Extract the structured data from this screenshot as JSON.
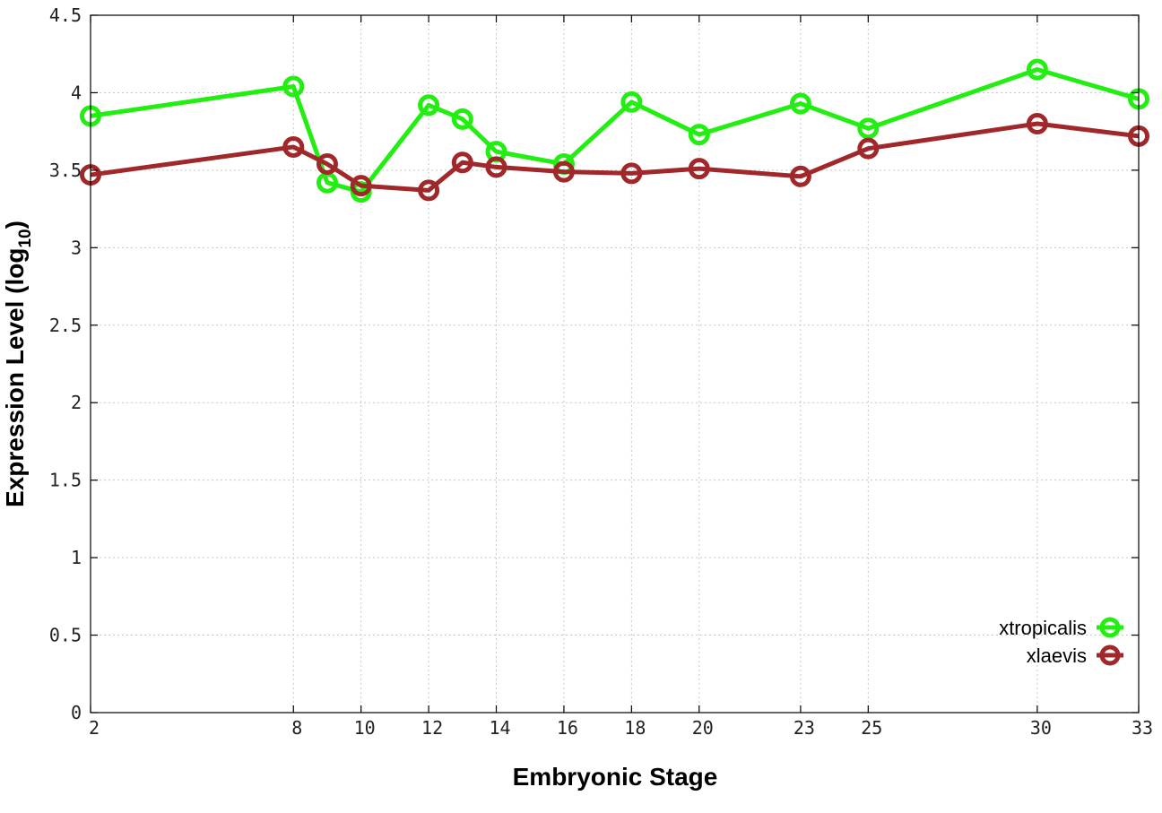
{
  "chart_data": {
    "type": "line",
    "xlabel": "Embryonic Stage",
    "ylabel_main": "Expression Level (log",
    "ylabel_sub": "10",
    "ylabel_close": ")",
    "xlim": [
      2,
      33
    ],
    "ylim": [
      0,
      4.5
    ],
    "x_ticks": [
      2,
      8,
      10,
      12,
      14,
      16,
      18,
      20,
      23,
      25,
      30,
      33
    ],
    "y_ticks": [
      0,
      0.5,
      1,
      1.5,
      2,
      2.5,
      3,
      3.5,
      4,
      4.5
    ],
    "x_tick_labels": [
      "2",
      "8",
      "10",
      "12",
      "14",
      "16",
      "18",
      "20",
      "23",
      "25",
      "30",
      "33"
    ],
    "y_tick_labels": [
      "0",
      "0.5",
      "1",
      "1.5",
      "2",
      "2.5",
      "3",
      "3.5",
      "4",
      "4.5"
    ],
    "grid": true,
    "legend_position": "bottom-right",
    "series": [
      {
        "name": "xtropicalis",
        "color": "#22ee11",
        "x": [
          2,
          8,
          9,
          10,
          12,
          13,
          14,
          16,
          18,
          20,
          23,
          25,
          30,
          33
        ],
        "y": [
          3.85,
          4.04,
          3.42,
          3.36,
          3.92,
          3.83,
          3.62,
          3.54,
          3.94,
          3.73,
          3.93,
          3.77,
          4.15,
          3.96
        ]
      },
      {
        "name": "xlaevis",
        "color": "#a0282a",
        "x": [
          2,
          8,
          9,
          10,
          12,
          13,
          14,
          16,
          18,
          20,
          23,
          25,
          30,
          33
        ],
        "y": [
          3.47,
          3.65,
          3.54,
          3.4,
          3.37,
          3.55,
          3.52,
          3.49,
          3.48,
          3.51,
          3.46,
          3.64,
          3.8,
          3.72
        ]
      }
    ]
  }
}
